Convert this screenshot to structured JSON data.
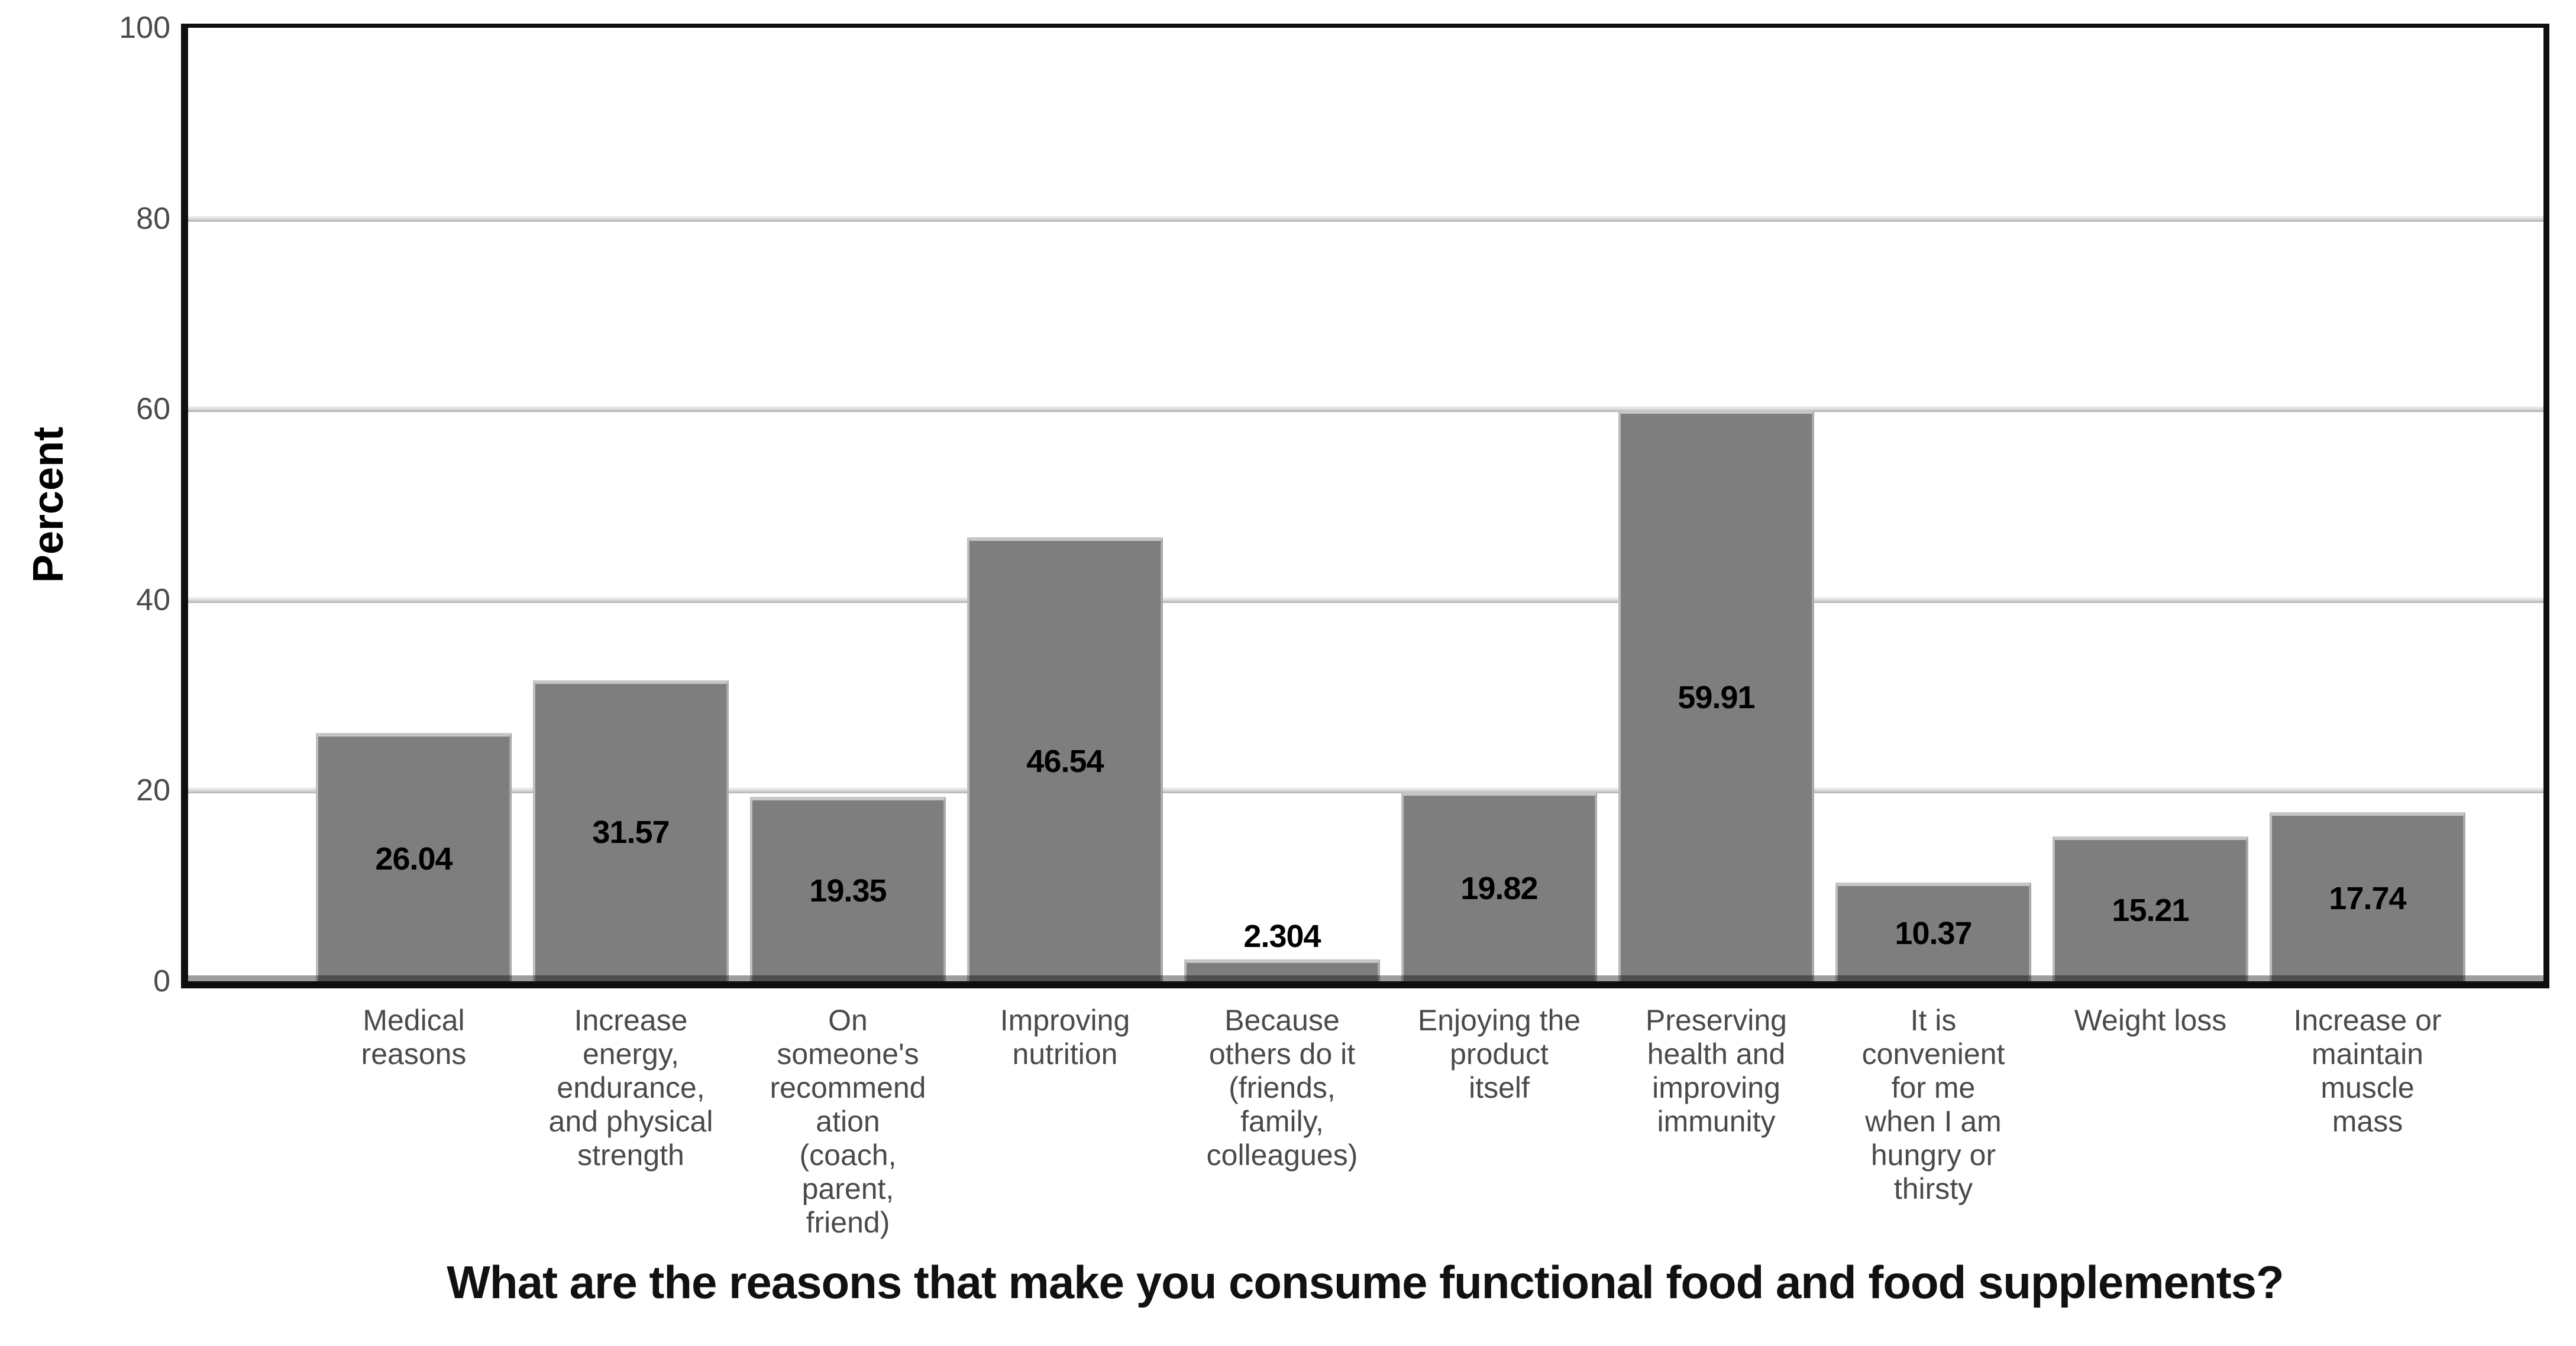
{
  "chart_data": {
    "type": "bar",
    "title": "",
    "xlabel": "What are the reasons that make you consume functional food and food supplements?",
    "ylabel": "Percent",
    "ylim": [
      0,
      100
    ],
    "yticks": [
      0,
      20,
      40,
      60,
      80,
      100
    ],
    "gridlines_at": [
      20,
      40,
      60,
      80
    ],
    "grid": true,
    "legend_position": "none",
    "bar_color": "#7e7e7e",
    "bar_highlight_color": "#c6c6c6",
    "gridline_color": "#aeaeae",
    "frame_color": "#0f0f0f",
    "categories": [
      "Medical reasons",
      "Increase energy, endurance, and physical strength",
      "On someone's recommendation (coach, parent, friend)",
      "Improving nutrition",
      "Because others do it (friends, family, colleagues)",
      "Enjoying the product itself",
      "Preserving health and improving immunity",
      "It is convenient for me when I am hungry or thirsty",
      "Weight loss",
      "Increase or maintain muscle mass"
    ],
    "categories_wrapped": [
      "Medical\nreasons",
      "Increase\nenergy,\nendurance,\nand physical\nstrength",
      "On\nsomeone's\nrecommend\nation\n(coach,\nparent,\nfriend)",
      "Improving\nnutrition",
      "Because\nothers do it\n(friends,\nfamily,\ncolleagues)",
      "Enjoying the\nproduct\nitself",
      "Preserving\nhealth and\nimproving\nimmunity",
      "It is\nconvenient\nfor me\nwhen I am\nhungry or\nthirsty",
      "Weight loss",
      "Increase or\nmaintain\nmuscle\nmass"
    ],
    "values": [
      26.04,
      31.57,
      19.35,
      46.54,
      2.304,
      19.82,
      59.91,
      10.37,
      15.21,
      17.74
    ],
    "value_labels": [
      "26.04",
      "31.57",
      "19.35",
      "46.54",
      "2.304",
      "19.82",
      "59.91",
      "10.37",
      "15.21",
      "17.74"
    ]
  }
}
